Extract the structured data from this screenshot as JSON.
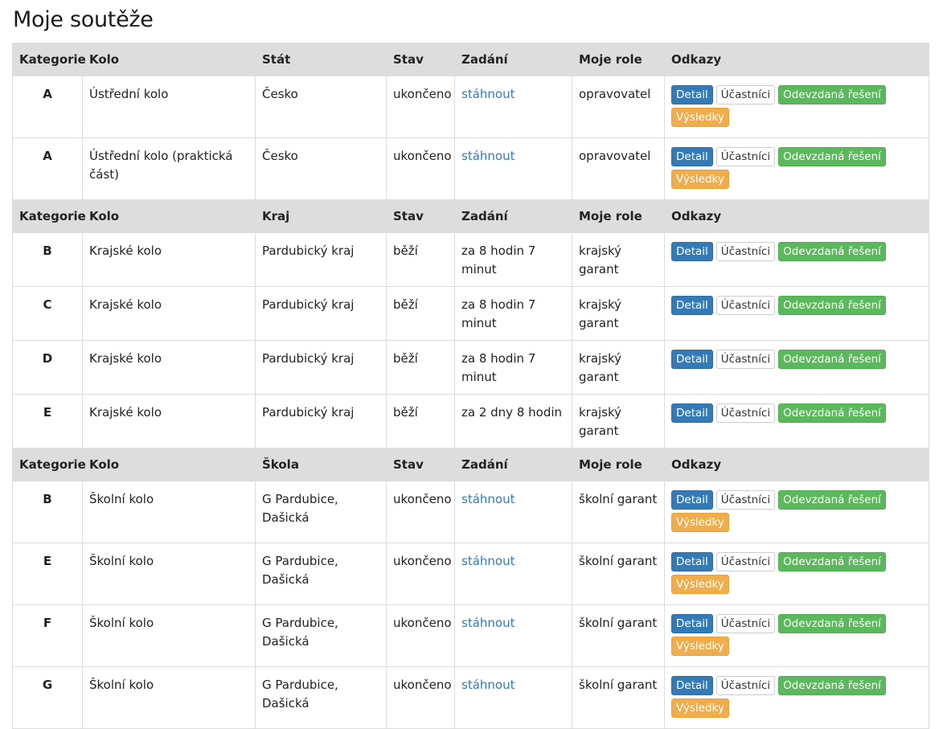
{
  "page": {
    "title": "Moje soutěže"
  },
  "buttons": {
    "detail": "Detail",
    "ucastnici": "Účastníci",
    "odevzdana": "Odevzdaná řešení",
    "vysledky": "Výsledky"
  },
  "sections": [
    {
      "headers": [
        "Kategorie",
        "Kolo",
        "Stát",
        "Stav",
        "Zadání",
        "Moje role",
        "Odkazy"
      ],
      "rows": [
        {
          "cat": "A",
          "kolo": "Ústřední kolo",
          "misto": "Česko",
          "stav": "ukončeno",
          "zadani": "stáhnout",
          "zadani_link": true,
          "role": "opravovatel",
          "vysledky": true
        },
        {
          "cat": "A",
          "kolo": "Ústřední kolo (praktická část)",
          "misto": "Česko",
          "stav": "ukončeno",
          "zadani": "stáhnout",
          "zadani_link": true,
          "role": "opravovatel",
          "vysledky": true
        }
      ]
    },
    {
      "headers": [
        "Kategorie",
        "Kolo",
        "Kraj",
        "Stav",
        "Zadání",
        "Moje role",
        "Odkazy"
      ],
      "rows": [
        {
          "cat": "B",
          "kolo": "Krajské kolo",
          "misto": "Pardubický kraj",
          "stav": "běží",
          "zadani": "za 8 hodin 7 minut",
          "zadani_link": false,
          "role": "krajský garant",
          "vysledky": false
        },
        {
          "cat": "C",
          "kolo": "Krajské kolo",
          "misto": "Pardubický kraj",
          "stav": "běží",
          "zadani": "za 8 hodin 7 minut",
          "zadani_link": false,
          "role": "krajský garant",
          "vysledky": false
        },
        {
          "cat": "D",
          "kolo": "Krajské kolo",
          "misto": "Pardubický kraj",
          "stav": "běží",
          "zadani": "za 8 hodin 7 minut",
          "zadani_link": false,
          "role": "krajský garant",
          "vysledky": false
        },
        {
          "cat": "E",
          "kolo": "Krajské kolo",
          "misto": "Pardubický kraj",
          "stav": "běží",
          "zadani": "za 2 dny 8 hodin",
          "zadani_link": false,
          "role": "krajský garant",
          "vysledky": false
        }
      ]
    },
    {
      "headers": [
        "Kategorie",
        "Kolo",
        "Škola",
        "Stav",
        "Zadání",
        "Moje role",
        "Odkazy"
      ],
      "rows": [
        {
          "cat": "B",
          "kolo": "Školní kolo",
          "misto": "G Pardubice, Dašická",
          "stav": "ukončeno",
          "zadani": "stáhnout",
          "zadani_link": true,
          "role": "školní garant",
          "vysledky": true
        },
        {
          "cat": "E",
          "kolo": "Školní kolo",
          "misto": "G Pardubice, Dašická",
          "stav": "ukončeno",
          "zadani": "stáhnout",
          "zadani_link": true,
          "role": "školní garant",
          "vysledky": true
        },
        {
          "cat": "F",
          "kolo": "Školní kolo",
          "misto": "G Pardubice, Dašická",
          "stav": "ukončeno",
          "zadani": "stáhnout",
          "zadani_link": true,
          "role": "školní garant",
          "vysledky": true
        },
        {
          "cat": "G",
          "kolo": "Školní kolo",
          "misto": "G Pardubice, Dašická",
          "stav": "ukončeno",
          "zadani": "stáhnout",
          "zadani_link": true,
          "role": "školní garant",
          "vysledky": true
        }
      ]
    }
  ]
}
